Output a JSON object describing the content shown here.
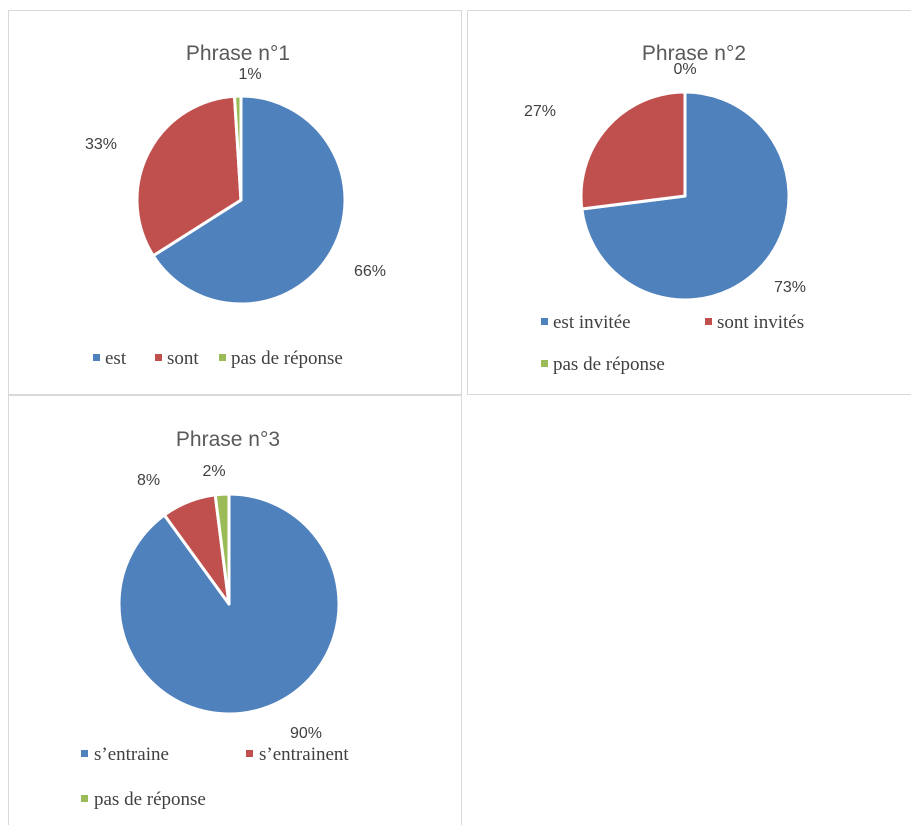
{
  "colors": {
    "blue": "#4F81BD",
    "red": "#C0504D",
    "green": "#9BBB59"
  },
  "chart_data": [
    {
      "type": "pie",
      "title": "Phrase n°1",
      "categories": [
        "est",
        "sont",
        "pas de réponse"
      ],
      "values": [
        66,
        33,
        1
      ],
      "labels": [
        "66%",
        "33%",
        "1%"
      ],
      "colors": [
        "#4F81BD",
        "#C0504D",
        "#9BBB59"
      ]
    },
    {
      "type": "pie",
      "title": "Phrase n°2",
      "categories": [
        "est invitée",
        "sont invités",
        "pas de réponse"
      ],
      "values": [
        73,
        27,
        0
      ],
      "labels": [
        "73%",
        "27%",
        "0%"
      ],
      "colors": [
        "#4F81BD",
        "#C0504D",
        "#9BBB59"
      ]
    },
    {
      "type": "pie",
      "title": "Phrase n°3",
      "categories": [
        "s’entraine",
        "s’entrainent",
        "pas de réponse"
      ],
      "values": [
        90,
        8,
        2
      ],
      "labels": [
        "90%",
        "8%",
        "2%"
      ],
      "colors": [
        "#4F81BD",
        "#C0504D",
        "#9BBB59"
      ]
    }
  ]
}
